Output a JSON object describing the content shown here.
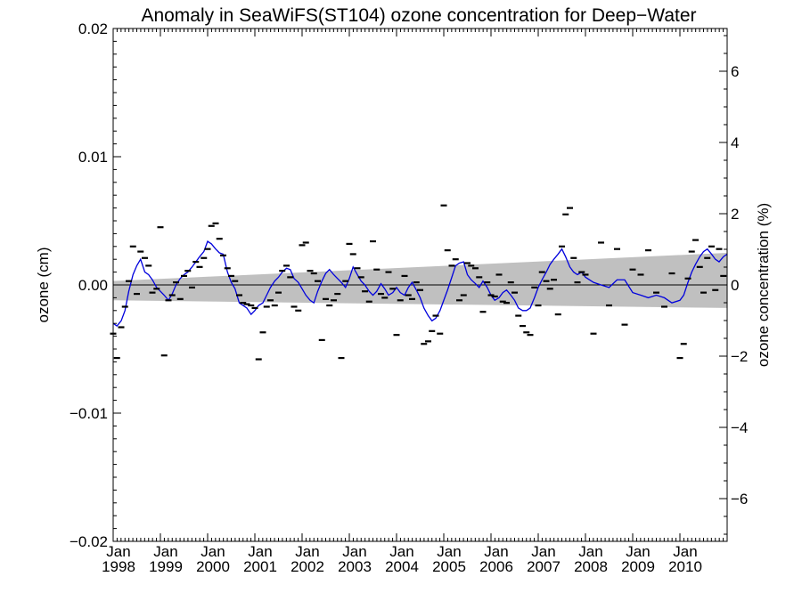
{
  "chart_data": {
    "type": "line",
    "title": "Anomaly in SeaWiFS(ST104) ozone concentration for Deep−Water",
    "ylabel": "ozone (cm)",
    "ylabel_right": "ozone concentration (%)",
    "xlabel": "",
    "ylim": [
      -0.02,
      0.02
    ],
    "ylim_right": [
      -7.2,
      7.2
    ],
    "xlim": [
      1998.0,
      2011.0
    ],
    "y_ticks": [
      {
        "v": 0.02,
        "label": "0.02"
      },
      {
        "v": 0.01,
        "label": "0.01"
      },
      {
        "v": 0.0,
        "label": "0.00"
      },
      {
        "v": -0.01,
        "label": "−0.01"
      },
      {
        "v": -0.02,
        "label": "−0.02"
      }
    ],
    "y_right_ticks": [
      {
        "v": 6,
        "label": "6"
      },
      {
        "v": 4,
        "label": "4"
      },
      {
        "v": 2,
        "label": "2"
      },
      {
        "v": 0,
        "label": "0"
      },
      {
        "v": -2,
        "label": "−2"
      },
      {
        "v": -4,
        "label": "−4"
      },
      {
        "v": -6,
        "label": "−6"
      }
    ],
    "x_ticks": [
      {
        "v": 1998,
        "month": "Jan",
        "year": "1998"
      },
      {
        "v": 1999,
        "month": "Jan",
        "year": "1999"
      },
      {
        "v": 2000,
        "month": "Jan",
        "year": "2000"
      },
      {
        "v": 2001,
        "month": "Jan",
        "year": "2001"
      },
      {
        "v": 2002,
        "month": "Jan",
        "year": "2002"
      },
      {
        "v": 2003,
        "month": "Jan",
        "year": "2003"
      },
      {
        "v": 2004,
        "month": "Jan",
        "year": "2004"
      },
      {
        "v": 2005,
        "month": "Jan",
        "year": "2005"
      },
      {
        "v": 2006,
        "month": "Jan",
        "year": "2006"
      },
      {
        "v": 2007,
        "month": "Jan",
        "year": "2007"
      },
      {
        "v": 2008,
        "month": "Jan",
        "year": "2008"
      },
      {
        "v": 2009,
        "month": "Jan",
        "year": "2009"
      },
      {
        "v": 2010,
        "month": "Jan",
        "year": "2010"
      }
    ],
    "zero_line": 0.0,
    "trend_band": {
      "x": [
        1998.0,
        2011.0
      ],
      "upper": [
        0.0003,
        0.0025
      ],
      "lower": [
        -0.0012,
        -0.0018
      ],
      "color": "#c0c0c0"
    },
    "monthly_points": {
      "color": "#000000",
      "x": [
        1998.0,
        1998.08,
        1998.17,
        1998.25,
        1998.33,
        1998.42,
        1998.5,
        1998.58,
        1998.67,
        1998.75,
        1998.83,
        1998.92,
        1999.0,
        1999.08,
        1999.17,
        1999.25,
        1999.33,
        1999.42,
        1999.5,
        1999.58,
        1999.67,
        1999.75,
        1999.83,
        1999.92,
        2000.0,
        2000.08,
        2000.17,
        2000.25,
        2000.33,
        2000.42,
        2000.5,
        2000.58,
        2000.67,
        2000.75,
        2000.83,
        2000.92,
        2001.0,
        2001.08,
        2001.17,
        2001.25,
        2001.33,
        2001.42,
        2001.5,
        2001.58,
        2001.67,
        2001.75,
        2001.83,
        2001.92,
        2002.0,
        2002.08,
        2002.17,
        2002.25,
        2002.33,
        2002.42,
        2002.5,
        2002.58,
        2002.67,
        2002.75,
        2002.83,
        2002.92,
        2003.0,
        2003.08,
        2003.17,
        2003.25,
        2003.33,
        2003.42,
        2003.5,
        2003.58,
        2003.67,
        2003.75,
        2003.83,
        2003.92,
        2004.0,
        2004.08,
        2004.17,
        2004.25,
        2004.33,
        2004.42,
        2004.5,
        2004.58,
        2004.67,
        2004.75,
        2004.83,
        2004.92,
        2005.0,
        2005.08,
        2005.17,
        2005.25,
        2005.33,
        2005.42,
        2005.5,
        2005.58,
        2005.67,
        2005.75,
        2005.83,
        2005.92,
        2006.0,
        2006.08,
        2006.17,
        2006.25,
        2006.33,
        2006.42,
        2006.5,
        2006.58,
        2006.67,
        2006.75,
        2006.83,
        2006.92,
        2007.0,
        2007.08,
        2007.17,
        2007.25,
        2007.33,
        2007.42,
        2007.5,
        2007.58,
        2007.67,
        2007.75,
        2007.83,
        2007.92,
        2008.0,
        2008.17,
        2008.33,
        2008.5,
        2008.67,
        2008.83,
        2009.0,
        2009.17,
        2009.33,
        2009.5,
        2009.67,
        2009.83,
        2010.0,
        2010.08,
        2010.17,
        2010.25,
        2010.33,
        2010.42,
        2010.5,
        2010.58,
        2010.67,
        2010.75,
        2010.83,
        2010.92
      ],
      "y": [
        -0.0038,
        -0.0057,
        -0.0033,
        -0.0017,
        0.0003,
        0.003,
        -0.0007,
        0.0026,
        0.0021,
        0.0015,
        -0.0006,
        -0.0003,
        0.0045,
        -0.0055,
        -0.0012,
        -0.0008,
        0.0002,
        -0.0011,
        0.0007,
        0.0011,
        -0.0002,
        0.0018,
        0.0014,
        0.0021,
        0.0028,
        0.0046,
        0.0048,
        0.0036,
        0.0023,
        0.0013,
        0.0007,
        0.0003,
        -0.0008,
        -0.0014,
        -0.0015,
        -0.0016,
        -0.0018,
        -0.0058,
        -0.0037,
        -0.0017,
        -0.0012,
        -0.0016,
        -0.0006,
        0.0011,
        0.0015,
        0.0006,
        -0.0017,
        -0.002,
        0.0031,
        0.0033,
        0.0011,
        0.0009,
        0.0003,
        -0.0043,
        -0.0011,
        -0.0016,
        -0.0012,
        -0.0007,
        -0.0057,
        0.0003,
        0.0032,
        0.0024,
        0.0013,
        0.0006,
        -0.0005,
        -0.0013,
        0.0034,
        0.0012,
        -0.0007,
        -0.001,
        0.001,
        -0.0003,
        -0.0039,
        -0.0012,
        0.0007,
        -0.0008,
        -0.0011,
        0.0002,
        -0.0004,
        -0.0046,
        -0.0044,
        -0.0036,
        -0.0024,
        -0.0038,
        0.0062,
        0.0027,
        0.0015,
        0.002,
        -0.0012,
        -0.0008,
        0.0017,
        0.0015,
        0.0013,
        0.0006,
        -0.0021,
        0.0002,
        -0.0008,
        -0.0009,
        0.0008,
        -0.0013,
        -0.0014,
        0.0002,
        -0.0006,
        -0.0024,
        -0.0032,
        -0.0037,
        -0.0039,
        -0.0002,
        -0.0016,
        0.001,
        0.0003,
        -0.0003,
        0.0004,
        -0.0023,
        0.003,
        0.0055,
        0.006,
        0.0021,
        0.0002,
        0.001,
        0.0008,
        -0.0038,
        0.0033,
        -0.0016,
        0.0028,
        -0.0031,
        0.0012,
        0.0008,
        0.0027,
        -0.0006,
        -0.0017,
        0.0009,
        -0.0057,
        -0.0046,
        0.0005,
        0.0026,
        0.0035,
        0.0014,
        -0.0006,
        0.0021,
        0.003,
        -0.0004,
        0.0028,
        0.0007
      ]
    },
    "series": [
      {
        "color": "#0000dd",
        "x": [
          1998.0,
          1998.08,
          1998.17,
          1998.25,
          1998.33,
          1998.42,
          1998.5,
          1998.58,
          1998.67,
          1998.75,
          1998.83,
          1998.92,
          1999.0,
          1999.08,
          1999.17,
          1999.25,
          1999.33,
          1999.42,
          1999.5,
          1999.58,
          1999.67,
          1999.75,
          1999.83,
          1999.92,
          2000.0,
          2000.08,
          2000.17,
          2000.25,
          2000.33,
          2000.42,
          2000.5,
          2000.58,
          2000.67,
          2000.75,
          2000.83,
          2000.92,
          2001.0,
          2001.08,
          2001.17,
          2001.25,
          2001.33,
          2001.42,
          2001.5,
          2001.58,
          2001.67,
          2001.75,
          2001.83,
          2001.92,
          2002.0,
          2002.08,
          2002.17,
          2002.25,
          2002.33,
          2002.42,
          2002.5,
          2002.58,
          2002.67,
          2002.75,
          2002.83,
          2002.92,
          2003.0,
          2003.08,
          2003.17,
          2003.25,
          2003.33,
          2003.42,
          2003.5,
          2003.58,
          2003.67,
          2003.75,
          2003.83,
          2003.92,
          2004.0,
          2004.08,
          2004.17,
          2004.25,
          2004.33,
          2004.42,
          2004.5,
          2004.58,
          2004.67,
          2004.75,
          2004.83,
          2004.92,
          2005.0,
          2005.08,
          2005.17,
          2005.25,
          2005.33,
          2005.42,
          2005.5,
          2005.58,
          2005.67,
          2005.75,
          2005.83,
          2005.92,
          2006.0,
          2006.08,
          2006.17,
          2006.25,
          2006.33,
          2006.42,
          2006.5,
          2006.58,
          2006.67,
          2006.75,
          2006.83,
          2006.92,
          2007.0,
          2007.08,
          2007.17,
          2007.25,
          2007.33,
          2007.42,
          2007.5,
          2007.58,
          2007.67,
          2007.75,
          2007.83,
          2007.92,
          2008.0,
          2008.17,
          2008.33,
          2008.5,
          2008.67,
          2008.83,
          2009.0,
          2009.17,
          2009.33,
          2009.5,
          2009.67,
          2009.83,
          2010.0,
          2010.08,
          2010.17,
          2010.25,
          2010.33,
          2010.42,
          2010.5,
          2010.58,
          2010.67,
          2010.75,
          2010.83,
          2010.92,
          2011.0
        ],
        "y": [
          -0.003,
          -0.0032,
          -0.0028,
          -0.002,
          -0.0005,
          0.0008,
          0.0015,
          0.002,
          0.001,
          0.0008,
          0.0004,
          -0.0002,
          -0.0005,
          -0.0008,
          -0.0012,
          -0.0007,
          0.0,
          0.0005,
          0.0008,
          0.001,
          0.0014,
          0.0018,
          0.0022,
          0.0026,
          0.0034,
          0.0032,
          0.0028,
          0.0025,
          0.0024,
          0.001,
          0.0002,
          -0.0003,
          -0.0014,
          -0.0016,
          -0.0018,
          -0.0023,
          -0.002,
          -0.0016,
          -0.0014,
          -0.0008,
          -0.0002,
          0.0003,
          0.0006,
          0.001,
          0.0013,
          0.0012,
          0.0005,
          0.0002,
          -0.0003,
          -0.0008,
          -0.0012,
          -0.0014,
          -0.0005,
          0.0003,
          0.0009,
          0.0012,
          0.0008,
          0.0005,
          0.0002,
          -0.0002,
          0.0005,
          0.0014,
          0.0008,
          0.0003,
          0.0,
          -0.0005,
          -0.0008,
          -0.0005,
          0.0001,
          -0.0003,
          -0.0008,
          -0.0006,
          -0.0002,
          -0.0006,
          -0.0008,
          -0.0002,
          0.0002,
          -0.0004,
          -0.001,
          -0.0018,
          -0.0024,
          -0.0028,
          -0.0026,
          -0.002,
          -0.0012,
          -0.0004,
          0.0006,
          0.0015,
          0.0017,
          0.0018,
          0.0008,
          0.0004,
          0.0001,
          -0.0002,
          0.0003,
          -0.0002,
          -0.0008,
          -0.0012,
          -0.001,
          -0.0006,
          -0.0004,
          -0.0008,
          -0.0012,
          -0.0018,
          -0.002,
          -0.002,
          -0.0018,
          -0.001,
          -0.0002,
          0.0004,
          0.001,
          0.0016,
          0.002,
          0.0024,
          0.0028,
          0.0022,
          0.0014,
          0.001,
          0.0008,
          0.001,
          0.0006,
          0.0002,
          0.0,
          -0.0002,
          0.0004,
          0.0004,
          -0.0006,
          -0.0008,
          -0.001,
          -0.0008,
          -0.001,
          -0.0014,
          -0.0012,
          -0.0008,
          0.0002,
          0.001,
          0.0016,
          0.0022,
          0.0026,
          0.0028,
          0.0024,
          0.002,
          0.0018,
          0.0022,
          0.0024
        ]
      }
    ]
  }
}
